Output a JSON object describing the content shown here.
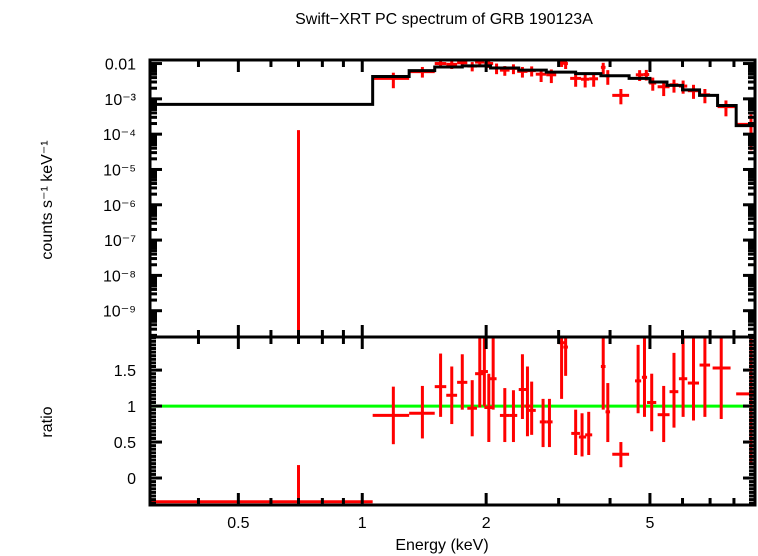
{
  "chart_data": [
    {
      "type": "scatter",
      "panel": "spectrum",
      "title": "Swift−XRT PC spectrum of GRB 190123A",
      "xlabel": "Energy (keV)",
      "ylabel": "counts s⁻¹ keV⁻¹",
      "xscale": "log",
      "yscale": "log",
      "xlim": [
        0.305,
        9.0
      ],
      "ylim": [
        1.8e-10,
        0.0126
      ],
      "ytick_labels": [
        "0.01",
        "10⁻³",
        "10⁻⁴",
        "10⁻⁵",
        "10⁻⁶",
        "10⁻⁷",
        "10⁻⁸",
        "10⁻⁹"
      ],
      "ytick_values": [
        0.01,
        0.001,
        0.0001,
        1e-05,
        1e-06,
        1e-07,
        1e-08,
        1e-09
      ],
      "model_steps": [
        {
          "x0": 0.305,
          "x1": 1.06,
          "y": 0.0007
        },
        {
          "x0": 1.06,
          "x1": 1.3,
          "y": 0.0043
        },
        {
          "x0": 1.3,
          "x1": 1.5,
          "y": 0.0063
        },
        {
          "x0": 1.5,
          "x1": 1.75,
          "y": 0.008
        },
        {
          "x0": 1.75,
          "x1": 2.05,
          "y": 0.0086
        },
        {
          "x0": 2.05,
          "x1": 2.4,
          "y": 0.0075
        },
        {
          "x0": 2.4,
          "x1": 2.8,
          "y": 0.0065
        },
        {
          "x0": 2.8,
          "x1": 3.3,
          "y": 0.0057
        },
        {
          "x0": 3.3,
          "x1": 3.8,
          "y": 0.0052
        },
        {
          "x0": 3.8,
          "x1": 4.45,
          "y": 0.0045
        },
        {
          "x0": 4.45,
          "x1": 5.0,
          "y": 0.0038
        },
        {
          "x0": 5.0,
          "x1": 5.5,
          "y": 0.003
        },
        {
          "x0": 5.5,
          "x1": 6.0,
          "y": 0.0024
        },
        {
          "x0": 6.0,
          "x1": 6.6,
          "y": 0.0018
        },
        {
          "x0": 6.6,
          "x1": 7.3,
          "y": 0.00125
        },
        {
          "x0": 7.3,
          "x1": 8.1,
          "y": 0.00065
        },
        {
          "x0": 8.1,
          "x1": 9.0,
          "y": 0.000175
        }
      ],
      "points": [
        {
          "x": 0.7,
          "xlo": 0.7,
          "xhi": 0.7,
          "y": 1.8e-10,
          "ylo": 1.8e-10,
          "yhi": 0.00013
        },
        {
          "x": 1.19,
          "xlo": 1.06,
          "xhi": 1.3,
          "y": 0.0038,
          "ylo": 0.002,
          "yhi": 0.0055
        },
        {
          "x": 1.4,
          "xlo": 1.3,
          "xhi": 1.5,
          "y": 0.0059,
          "ylo": 0.004,
          "yhi": 0.008
        },
        {
          "x": 1.55,
          "xlo": 1.5,
          "xhi": 1.6,
          "y": 0.01,
          "ylo": 0.0075,
          "yhi": 0.0125
        },
        {
          "x": 1.65,
          "xlo": 1.6,
          "xhi": 1.7,
          "y": 0.0095,
          "ylo": 0.007,
          "yhi": 0.012
        },
        {
          "x": 1.75,
          "xlo": 1.7,
          "xhi": 1.8,
          "y": 0.0105,
          "ylo": 0.008,
          "yhi": 0.0126
        },
        {
          "x": 1.85,
          "xlo": 1.8,
          "xhi": 1.9,
          "y": 0.0085,
          "ylo": 0.006,
          "yhi": 0.011
        },
        {
          "x": 1.93,
          "xlo": 1.88,
          "xhi": 1.98,
          "y": 0.011,
          "ylo": 0.0085,
          "yhi": 0.0126
        },
        {
          "x": 2.03,
          "xlo": 1.98,
          "xhi": 2.08,
          "y": 0.01,
          "ylo": 0.0075,
          "yhi": 0.0126
        },
        {
          "x": 2.12,
          "xlo": 2.08,
          "xhi": 2.16,
          "y": 0.0075,
          "ylo": 0.005,
          "yhi": 0.01
        },
        {
          "x": 2.22,
          "xlo": 2.16,
          "xhi": 2.28,
          "y": 0.0065,
          "ylo": 0.0045,
          "yhi": 0.0085
        },
        {
          "x": 2.33,
          "xlo": 2.28,
          "xhi": 2.38,
          "y": 0.0073,
          "ylo": 0.005,
          "yhi": 0.0095
        },
        {
          "x": 2.45,
          "xlo": 2.38,
          "xhi": 2.52,
          "y": 0.006,
          "ylo": 0.004,
          "yhi": 0.008
        },
        {
          "x": 2.58,
          "xlo": 2.52,
          "xhi": 2.64,
          "y": 0.0063,
          "ylo": 0.0043,
          "yhi": 0.0083
        },
        {
          "x": 2.72,
          "xlo": 2.64,
          "xhi": 2.8,
          "y": 0.005,
          "ylo": 0.003,
          "yhi": 0.007
        },
        {
          "x": 2.88,
          "xlo": 2.8,
          "xhi": 2.96,
          "y": 0.0048,
          "ylo": 0.0028,
          "yhi": 0.0068
        },
        {
          "x": 3.05,
          "xlo": 2.98,
          "xhi": 3.12,
          "y": 0.0105,
          "ylo": 0.008,
          "yhi": 0.0126
        },
        {
          "x": 3.12,
          "xlo": 3.08,
          "xhi": 3.16,
          "y": 0.01,
          "ylo": 0.007,
          "yhi": 0.0126
        },
        {
          "x": 3.3,
          "xlo": 3.2,
          "xhi": 3.4,
          "y": 0.0038,
          "ylo": 0.0022,
          "yhi": 0.0055
        },
        {
          "x": 3.48,
          "xlo": 3.4,
          "xhi": 3.56,
          "y": 0.0036,
          "ylo": 0.0021,
          "yhi": 0.0052
        },
        {
          "x": 3.65,
          "xlo": 3.56,
          "xhi": 3.74,
          "y": 0.0037,
          "ylo": 0.0022,
          "yhi": 0.0052
        },
        {
          "x": 3.85,
          "xlo": 3.8,
          "xhi": 3.9,
          "y": 0.0078,
          "ylo": 0.005,
          "yhi": 0.0105
        },
        {
          "x": 3.95,
          "xlo": 3.9,
          "xhi": 4.0,
          "y": 0.0045,
          "ylo": 0.0025,
          "yhi": 0.0065
        },
        {
          "x": 4.25,
          "xlo": 4.05,
          "xhi": 4.45,
          "y": 0.00125,
          "ylo": 0.0007,
          "yhi": 0.0019
        },
        {
          "x": 4.72,
          "xlo": 4.62,
          "xhi": 4.82,
          "y": 0.0048,
          "ylo": 0.0032,
          "yhi": 0.0065
        },
        {
          "x": 4.9,
          "xlo": 4.82,
          "xhi": 4.98,
          "y": 0.0049,
          "ylo": 0.0033,
          "yhi": 0.0066
        },
        {
          "x": 5.08,
          "xlo": 4.98,
          "xhi": 5.18,
          "y": 0.0028,
          "ylo": 0.0017,
          "yhi": 0.004
        },
        {
          "x": 5.4,
          "xlo": 5.22,
          "xhi": 5.58,
          "y": 0.0022,
          "ylo": 0.0012,
          "yhi": 0.0032
        },
        {
          "x": 5.72,
          "xlo": 5.58,
          "xhi": 5.86,
          "y": 0.0025,
          "ylo": 0.0015,
          "yhi": 0.0035
        },
        {
          "x": 6.02,
          "xlo": 5.88,
          "xhi": 6.16,
          "y": 0.0023,
          "ylo": 0.0014,
          "yhi": 0.0033
        },
        {
          "x": 6.38,
          "xlo": 6.18,
          "xhi": 6.58,
          "y": 0.0017,
          "ylo": 0.001,
          "yhi": 0.0025
        },
        {
          "x": 6.8,
          "xlo": 6.6,
          "xhi": 7.0,
          "y": 0.0013,
          "ylo": 0.00075,
          "yhi": 0.0019
        },
        {
          "x": 7.65,
          "xlo": 7.3,
          "xhi": 8.1,
          "y": 0.0006,
          "ylo": 0.00032,
          "yhi": 0.0009
        },
        {
          "x": 8.8,
          "xlo": 8.1,
          "xhi": 9.0,
          "y": 0.00019,
          "ylo": 3.5e-05,
          "yhi": 0.00036
        }
      ]
    },
    {
      "type": "scatter",
      "panel": "ratio",
      "xlabel": "Energy (keV)",
      "ylabel": "ratio",
      "xscale": "log",
      "yscale": "linear",
      "xlim": [
        0.305,
        9.0
      ],
      "ylim": [
        -0.375,
        1.96
      ],
      "ytick_labels": [
        "0",
        "0.5",
        "1",
        "1.5"
      ],
      "ytick_values": [
        0,
        0.5,
        1,
        1.5
      ],
      "xtick_labels": [
        "0.5",
        "1",
        "2",
        "5"
      ],
      "xtick_values": [
        0.5,
        1,
        2,
        5
      ],
      "reference_line": {
        "y": 1,
        "color": "#00ff00"
      },
      "points": [
        {
          "x": 0.7,
          "xlo": 0.305,
          "xhi": 1.06,
          "y": -0.33,
          "ylo": -0.375,
          "yhi": 0.18
        },
        {
          "x": 1.19,
          "xlo": 1.06,
          "xhi": 1.3,
          "y": 0.87,
          "ylo": 0.47,
          "yhi": 1.27
        },
        {
          "x": 1.4,
          "xlo": 1.3,
          "xhi": 1.5,
          "y": 0.9,
          "ylo": 0.55,
          "yhi": 1.28
        },
        {
          "x": 1.55,
          "xlo": 1.5,
          "xhi": 1.6,
          "y": 1.27,
          "ylo": 0.85,
          "yhi": 1.73
        },
        {
          "x": 1.65,
          "xlo": 1.6,
          "xhi": 1.7,
          "y": 1.15,
          "ylo": 0.75,
          "yhi": 1.55
        },
        {
          "x": 1.75,
          "xlo": 1.7,
          "xhi": 1.8,
          "y": 1.33,
          "ylo": 0.95,
          "yhi": 1.72
        },
        {
          "x": 1.85,
          "xlo": 1.8,
          "xhi": 1.9,
          "y": 0.97,
          "ylo": 0.58,
          "yhi": 1.36
        },
        {
          "x": 1.93,
          "xlo": 1.88,
          "xhi": 1.98,
          "y": 1.45,
          "ylo": 0.98,
          "yhi": 1.96
        },
        {
          "x": 1.98,
          "xlo": 1.94,
          "xhi": 2.02,
          "y": 1.48,
          "ylo": 1.0,
          "yhi": 1.96
        },
        {
          "x": 2.03,
          "xlo": 1.98,
          "xhi": 2.08,
          "y": 0.98,
          "ylo": 0.5,
          "yhi": 1.45
        },
        {
          "x": 2.08,
          "xlo": 2.04,
          "xhi": 2.12,
          "y": 1.38,
          "ylo": 0.95,
          "yhi": 1.96
        },
        {
          "x": 2.22,
          "xlo": 2.16,
          "xhi": 2.28,
          "y": 0.87,
          "ylo": 0.5,
          "yhi": 1.25
        },
        {
          "x": 2.33,
          "xlo": 2.28,
          "xhi": 2.38,
          "y": 0.87,
          "ylo": 0.5,
          "yhi": 1.22
        },
        {
          "x": 2.45,
          "xlo": 2.4,
          "xhi": 2.5,
          "y": 1.23,
          "ylo": 0.82,
          "yhi": 1.72
        },
        {
          "x": 2.52,
          "xlo": 2.48,
          "xhi": 2.56,
          "y": 1.0,
          "ylo": 0.58,
          "yhi": 1.55
        },
        {
          "x": 2.58,
          "xlo": 2.54,
          "xhi": 2.64,
          "y": 0.94,
          "ylo": 0.6,
          "yhi": 1.34
        },
        {
          "x": 2.75,
          "xlo": 2.7,
          "xhi": 2.8,
          "y": 0.78,
          "ylo": 0.43,
          "yhi": 1.1
        },
        {
          "x": 2.85,
          "xlo": 2.8,
          "xhi": 2.9,
          "y": 0.78,
          "ylo": 0.43,
          "yhi": 1.1
        },
        {
          "x": 3.05,
          "xlo": 3.0,
          "xhi": 3.1,
          "y": 1.88,
          "ylo": 1.1,
          "yhi": 1.96
        },
        {
          "x": 3.12,
          "xlo": 3.08,
          "xhi": 3.16,
          "y": 1.82,
          "ylo": 1.42,
          "yhi": 1.96
        },
        {
          "x": 3.3,
          "xlo": 3.22,
          "xhi": 3.38,
          "y": 0.62,
          "ylo": 0.32,
          "yhi": 0.95
        },
        {
          "x": 3.42,
          "xlo": 3.36,
          "xhi": 3.5,
          "y": 0.57,
          "ylo": 0.3,
          "yhi": 0.9
        },
        {
          "x": 3.55,
          "xlo": 3.48,
          "xhi": 3.62,
          "y": 0.6,
          "ylo": 0.32,
          "yhi": 0.92
        },
        {
          "x": 3.85,
          "xlo": 3.8,
          "xhi": 3.9,
          "y": 1.55,
          "ylo": 0.95,
          "yhi": 1.96
        },
        {
          "x": 3.95,
          "xlo": 3.9,
          "xhi": 4.0,
          "y": 0.92,
          "ylo": 0.5,
          "yhi": 1.32
        },
        {
          "x": 4.25,
          "xlo": 4.05,
          "xhi": 4.45,
          "y": 0.33,
          "ylo": 0.15,
          "yhi": 0.5
        },
        {
          "x": 4.68,
          "xlo": 4.6,
          "xhi": 4.76,
          "y": 1.35,
          "ylo": 0.9,
          "yhi": 1.85
        },
        {
          "x": 4.85,
          "xlo": 4.78,
          "xhi": 4.92,
          "y": 1.4,
          "ylo": 0.85,
          "yhi": 1.96
        },
        {
          "x": 5.05,
          "xlo": 4.92,
          "xhi": 5.18,
          "y": 1.05,
          "ylo": 0.65,
          "yhi": 1.45
        },
        {
          "x": 5.4,
          "xlo": 5.22,
          "xhi": 5.58,
          "y": 0.88,
          "ylo": 0.5,
          "yhi": 1.28
        },
        {
          "x": 5.72,
          "xlo": 5.58,
          "xhi": 5.86,
          "y": 1.2,
          "ylo": 0.7,
          "yhi": 1.74
        },
        {
          "x": 6.02,
          "xlo": 5.88,
          "xhi": 6.16,
          "y": 1.38,
          "ylo": 0.85,
          "yhi": 1.96
        },
        {
          "x": 6.38,
          "xlo": 6.18,
          "xhi": 6.58,
          "y": 1.32,
          "ylo": 0.8,
          "yhi": 1.96
        },
        {
          "x": 6.8,
          "xlo": 6.6,
          "xhi": 7.0,
          "y": 1.57,
          "ylo": 0.85,
          "yhi": 1.96
        },
        {
          "x": 7.45,
          "xlo": 7.1,
          "xhi": 7.85,
          "y": 1.53,
          "ylo": 0.82,
          "yhi": 1.96
        },
        {
          "x": 8.8,
          "xlo": 8.1,
          "xhi": 9.0,
          "y": 1.17,
          "ylo": 0.18,
          "yhi": 1.96
        }
      ]
    }
  ],
  "colors": {
    "data": "#ff0000",
    "model": "#000000",
    "reference": "#00ff00"
  }
}
